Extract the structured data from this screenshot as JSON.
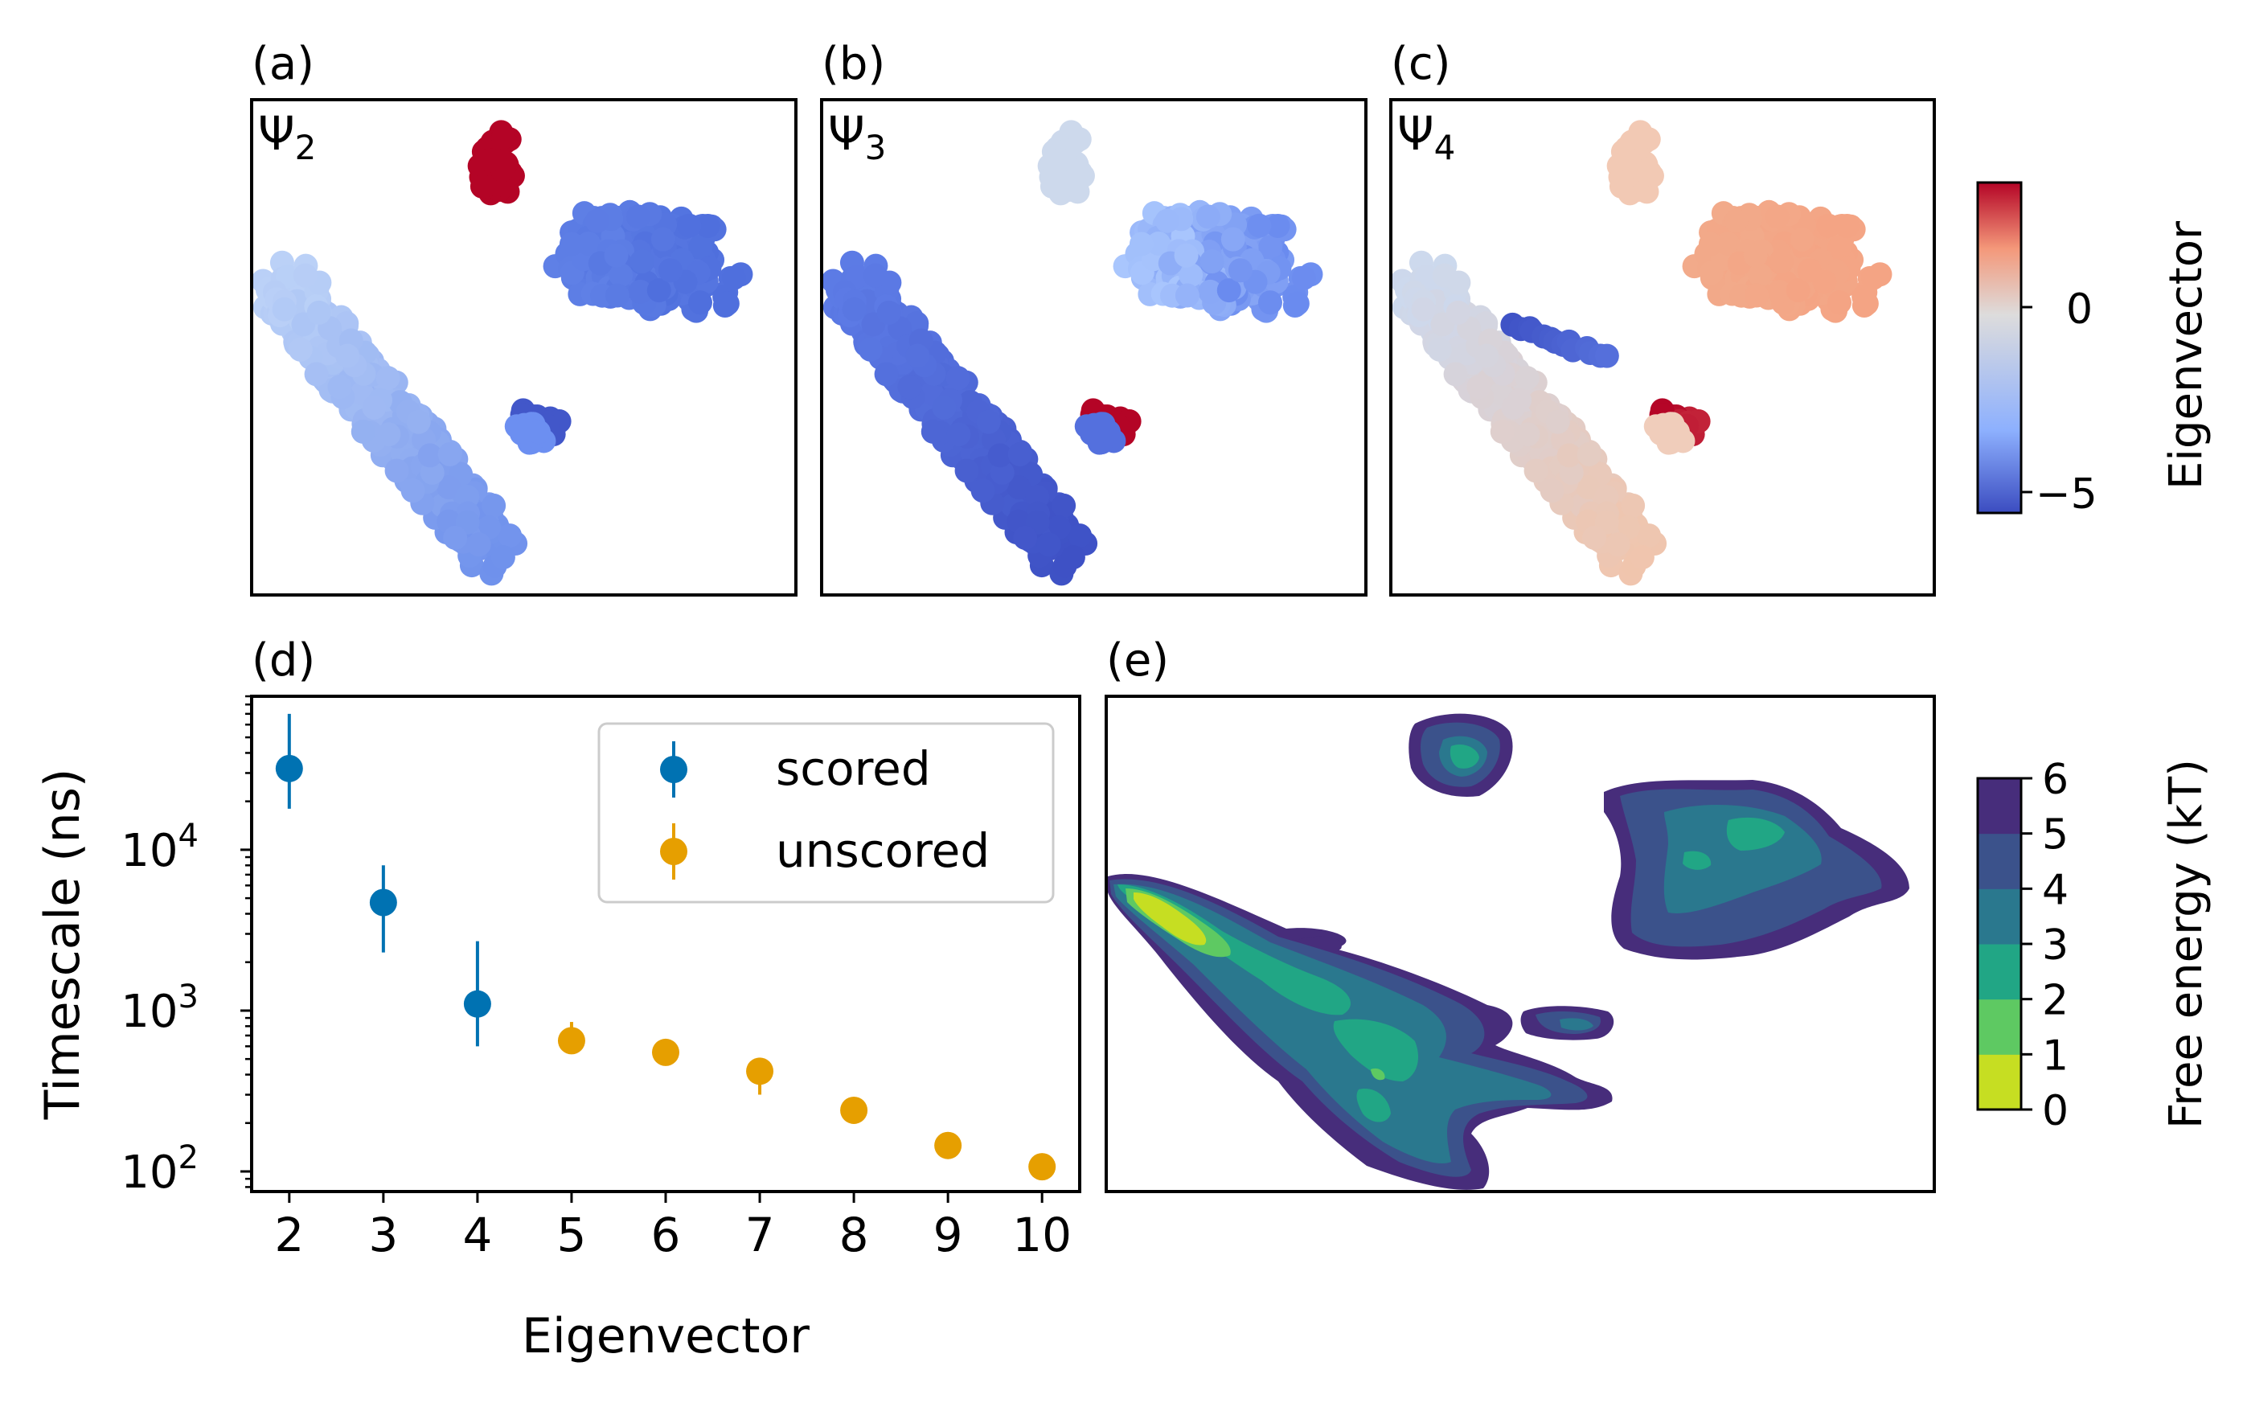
{
  "panels": {
    "a": {
      "label": "(a)",
      "psi": "Ψ",
      "sub": "2"
    },
    "b": {
      "label": "(b)",
      "psi": "Ψ",
      "sub": "3"
    },
    "c": {
      "label": "(c)",
      "psi": "Ψ",
      "sub": "4"
    },
    "d": {
      "label": "(d)"
    },
    "e": {
      "label": "(e)"
    }
  },
  "colorbar_eigen": {
    "label": "Eigenvector",
    "ticks": [
      "0",
      "−5"
    ],
    "colormap": "coolwarm",
    "colors": [
      "#3b4cc0",
      "#8db0fe",
      "#dddcdc",
      "#f4987a",
      "#b40426"
    ]
  },
  "colorbar_fe": {
    "label": "Free energy (kT)",
    "ticks": [
      "0",
      "1",
      "2",
      "3",
      "4",
      "5",
      "6"
    ],
    "colors": [
      "#c6de22",
      "#5ec962",
      "#21a685",
      "#2a788e",
      "#3b528b",
      "#472d7b"
    ]
  },
  "chart_data": [
    {
      "type": "scatter",
      "panel": "d",
      "xlabel": "Eigenvector",
      "ylabel": "Timescale (ns)",
      "yscale": "log",
      "ylim": [
        75,
        90000
      ],
      "xlim": [
        1.6,
        10.4
      ],
      "x_ticks": [
        "2",
        "3",
        "4",
        "5",
        "6",
        "7",
        "8",
        "9",
        "10"
      ],
      "y_ticks": [
        {
          "base": "10",
          "exp": "4"
        },
        {
          "base": "10",
          "exp": "3"
        },
        {
          "base": "10",
          "exp": "2"
        }
      ],
      "legend_position": "upper-right",
      "series": [
        {
          "name": "scored",
          "color": "#0072b2",
          "points": [
            {
              "x": 2,
              "y": 32000,
              "ylo": 18000,
              "yhi": 70000
            },
            {
              "x": 3,
              "y": 4700,
              "ylo": 2300,
              "yhi": 8000
            },
            {
              "x": 4,
              "y": 1100,
              "ylo": 600,
              "yhi": 2700
            }
          ]
        },
        {
          "name": "unscored",
          "color": "#e69f00",
          "points": [
            {
              "x": 5,
              "y": 650,
              "ylo": 540,
              "yhi": 850
            },
            {
              "x": 6,
              "y": 550,
              "ylo": 500,
              "yhi": 610
            },
            {
              "x": 7,
              "y": 420,
              "ylo": 300,
              "yhi": 510
            },
            {
              "x": 8,
              "y": 240,
              "ylo": 230,
              "yhi": 255
            },
            {
              "x": 9,
              "y": 145,
              "ylo": 140,
              "yhi": 150
            },
            {
              "x": 10,
              "y": 107,
              "ylo": 104,
              "yhi": 110
            }
          ]
        }
      ]
    }
  ]
}
